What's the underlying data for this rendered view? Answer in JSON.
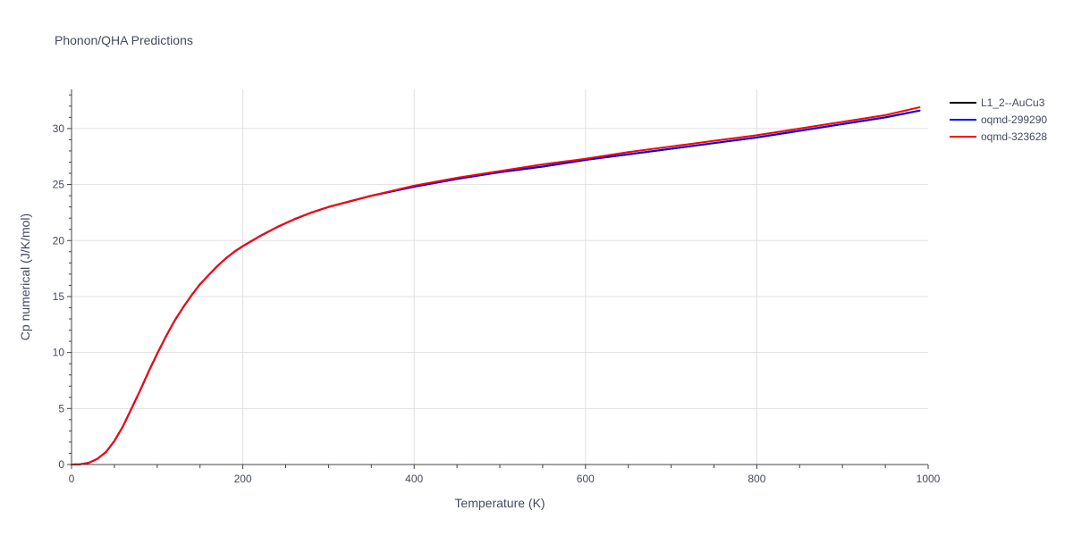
{
  "chart_data": {
    "type": "line",
    "title": "Phonon/QHA Predictions",
    "xlabel": "Temperature (K)",
    "ylabel": "Cp numerical (J/K/mol)",
    "xlim": [
      0,
      1000
    ],
    "ylim": [
      0,
      33.5
    ],
    "xticks": [
      0,
      200,
      400,
      600,
      800,
      1000
    ],
    "yticks": [
      0,
      5,
      10,
      15,
      20,
      25,
      30
    ],
    "grid": true,
    "legend_position": "top-right",
    "series": [
      {
        "name": "L1_2--AuCu3",
        "color": "#000000",
        "x": [
          0,
          10,
          20,
          30,
          40,
          50,
          60,
          70,
          80,
          90,
          100,
          110,
          120,
          130,
          140,
          150,
          160,
          170,
          180,
          190,
          200,
          220,
          240,
          260,
          280,
          300,
          350,
          400,
          450,
          500,
          550,
          600,
          650,
          700,
          750,
          800,
          850,
          900,
          950,
          990
        ],
        "y": [
          0,
          0.02,
          0.15,
          0.5,
          1.1,
          2.1,
          3.4,
          5.0,
          6.6,
          8.3,
          9.9,
          11.4,
          12.8,
          14.0,
          15.1,
          16.1,
          16.9,
          17.7,
          18.4,
          19.0,
          19.5,
          20.4,
          21.2,
          21.9,
          22.5,
          23.0,
          24.0,
          24.8,
          25.5,
          26.1,
          26.6,
          27.2,
          27.7,
          28.2,
          28.7,
          29.2,
          29.8,
          30.4,
          31.0,
          31.6
        ]
      },
      {
        "name": "oqmd-299290",
        "color": "#0000ff",
        "x": [
          0,
          10,
          20,
          30,
          40,
          50,
          60,
          70,
          80,
          90,
          100,
          110,
          120,
          130,
          140,
          150,
          160,
          170,
          180,
          190,
          200,
          220,
          240,
          260,
          280,
          300,
          350,
          400,
          450,
          500,
          550,
          600,
          650,
          700,
          750,
          800,
          850,
          900,
          950,
          990
        ],
        "y": [
          0,
          0.02,
          0.15,
          0.5,
          1.1,
          2.1,
          3.4,
          5.0,
          6.6,
          8.3,
          9.9,
          11.4,
          12.8,
          14.0,
          15.1,
          16.1,
          16.9,
          17.7,
          18.4,
          19.0,
          19.5,
          20.4,
          21.2,
          21.9,
          22.5,
          23.0,
          24.0,
          24.8,
          25.5,
          26.1,
          26.6,
          27.2,
          27.7,
          28.2,
          28.7,
          29.2,
          29.8,
          30.4,
          31.0,
          31.6
        ]
      },
      {
        "name": "oqmd-323628",
        "color": "#ff0000",
        "x": [
          0,
          10,
          20,
          30,
          40,
          50,
          60,
          70,
          80,
          90,
          100,
          110,
          120,
          130,
          140,
          150,
          160,
          170,
          180,
          190,
          200,
          220,
          240,
          260,
          280,
          300,
          350,
          400,
          450,
          500,
          550,
          600,
          650,
          700,
          750,
          800,
          850,
          900,
          950,
          990
        ],
        "y": [
          0,
          0.02,
          0.15,
          0.5,
          1.1,
          2.1,
          3.4,
          5.0,
          6.6,
          8.3,
          9.9,
          11.4,
          12.8,
          14.0,
          15.1,
          16.1,
          16.9,
          17.7,
          18.4,
          19.0,
          19.5,
          20.4,
          21.2,
          21.9,
          22.5,
          23.0,
          24.0,
          24.9,
          25.6,
          26.2,
          26.8,
          27.3,
          27.9,
          28.4,
          28.9,
          29.4,
          30.0,
          30.6,
          31.2,
          31.9
        ]
      }
    ]
  }
}
